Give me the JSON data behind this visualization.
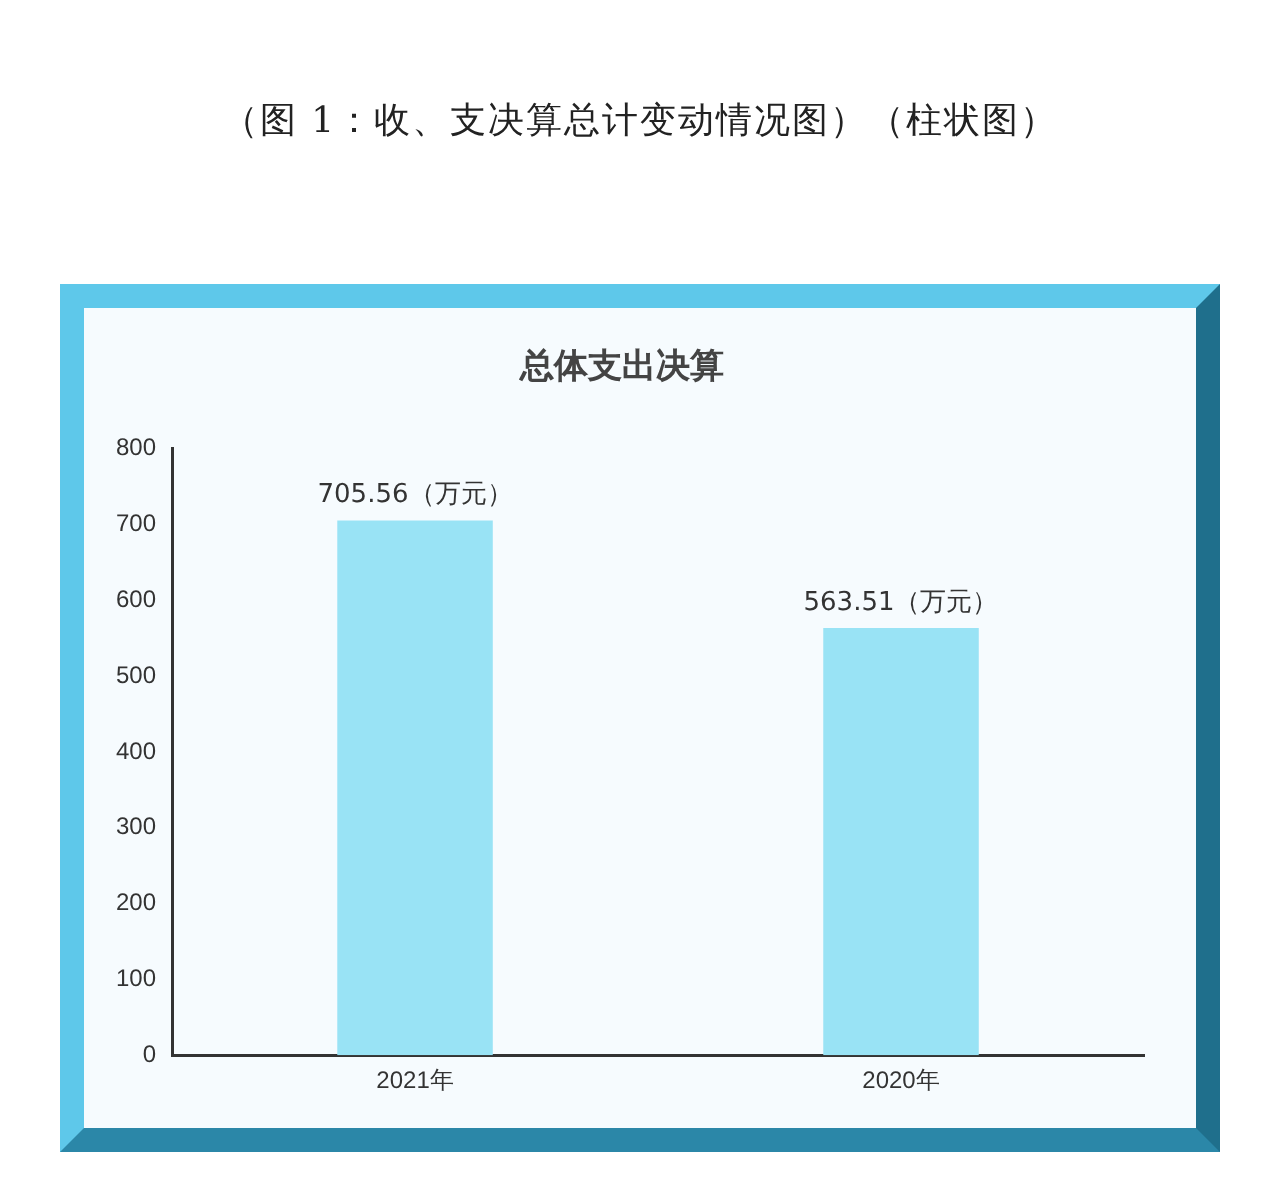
{
  "chart_data": {
    "type": "bar",
    "title": "总体支出决算",
    "annotations": [
      "（图 1：收、支决算总计变动情况图）（柱状图）"
    ],
    "categories": [
      "2021年",
      "2020年"
    ],
    "values": [
      705.56,
      563.51
    ],
    "value_labels": [
      "705.56（万元）",
      "563.51（万元）"
    ],
    "color": "#99e3f5",
    "ylim": [
      0,
      800
    ],
    "yticks": [
      0,
      100,
      200,
      300,
      400,
      500,
      600,
      700,
      800
    ],
    "grid": false,
    "legend": false
  }
}
